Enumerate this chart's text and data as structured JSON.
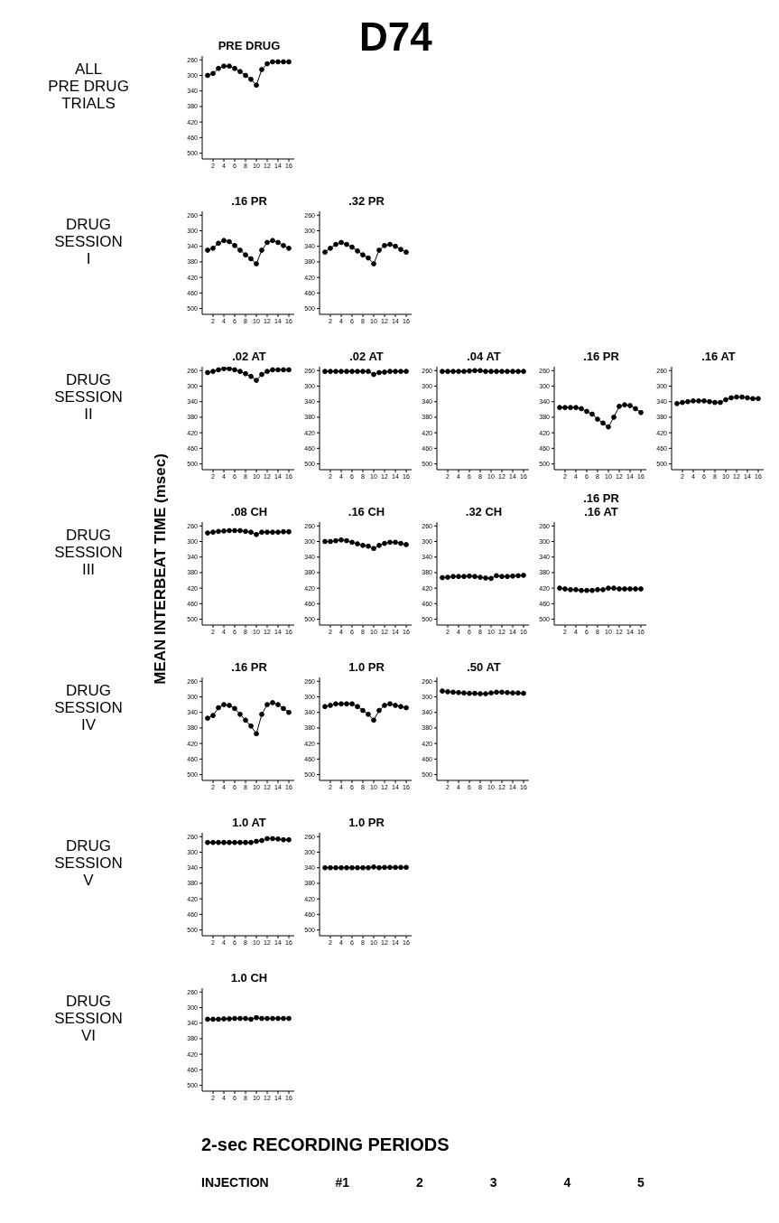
{
  "chart_data": [
    {
      "type": "line",
      "title": "PRE DRUG",
      "x": [
        1,
        2,
        3,
        4,
        5,
        6,
        7,
        8,
        9,
        10,
        11,
        12,
        13,
        14,
        15,
        16
      ],
      "values": [
        300,
        295,
        282,
        276,
        276,
        282,
        290,
        300,
        310,
        325,
        285,
        270,
        265,
        265,
        265,
        265
      ],
      "color": "#000000",
      "marker": "circle",
      "ylim": [
        515,
        250
      ],
      "yticks": [
        260,
        300,
        340,
        380,
        420,
        460,
        500
      ],
      "xlim": [
        0,
        17
      ],
      "xticks": [
        2,
        4,
        6,
        8,
        10,
        12,
        14,
        16
      ]
    },
    {
      "type": "line",
      "title": ".16 PR",
      "x": [
        1,
        2,
        3,
        4,
        5,
        6,
        7,
        8,
        9,
        10,
        11,
        12,
        13,
        14,
        15,
        16
      ],
      "values": [
        350,
        345,
        332,
        325,
        328,
        338,
        350,
        362,
        372,
        385,
        350,
        330,
        325,
        330,
        338,
        345
      ],
      "color": "#000000",
      "marker": "circle",
      "ylim": [
        515,
        250
      ],
      "yticks": [
        260,
        300,
        340,
        380,
        420,
        460,
        500
      ],
      "xlim": [
        0,
        17
      ],
      "xticks": [
        2,
        4,
        6,
        8,
        10,
        12,
        14,
        16
      ]
    },
    {
      "type": "line",
      "title": ".32 PR",
      "x": [
        1,
        2,
        3,
        4,
        5,
        6,
        7,
        8,
        9,
        10,
        11,
        12,
        13,
        14,
        15,
        16
      ],
      "values": [
        355,
        345,
        335,
        330,
        335,
        342,
        352,
        362,
        370,
        385,
        350,
        338,
        335,
        340,
        348,
        355
      ],
      "color": "#000000",
      "marker": "circle",
      "ylim": [
        515,
        250
      ],
      "yticks": [
        260,
        300,
        340,
        380,
        420,
        460,
        500
      ],
      "xlim": [
        0,
        17
      ],
      "xticks": [
        2,
        4,
        6,
        8,
        10,
        12,
        14,
        16
      ]
    },
    {
      "type": "line",
      "title": ".02 AT",
      "x": [
        1,
        2,
        3,
        4,
        5,
        6,
        7,
        8,
        9,
        10,
        11,
        12,
        13,
        14,
        15,
        16
      ],
      "values": [
        265,
        262,
        258,
        255,
        255,
        258,
        262,
        268,
        275,
        285,
        270,
        262,
        258,
        258,
        258,
        258
      ],
      "color": "#000000",
      "marker": "circle",
      "ylim": [
        515,
        250
      ],
      "yticks": [
        260,
        300,
        340,
        380,
        420,
        460,
        500
      ],
      "xlim": [
        0,
        17
      ],
      "xticks": [
        2,
        4,
        6,
        8,
        10,
        12,
        14,
        16
      ]
    },
    {
      "type": "line",
      "title": ".02 AT",
      "x": [
        1,
        2,
        3,
        4,
        5,
        6,
        7,
        8,
        9,
        10,
        11,
        12,
        13,
        14,
        15,
        16
      ],
      "values": [
        262,
        262,
        262,
        262,
        262,
        262,
        262,
        262,
        262,
        270,
        265,
        264,
        262,
        262,
        262,
        262
      ],
      "color": "#000000",
      "marker": "circle",
      "ylim": [
        515,
        250
      ],
      "yticks": [
        260,
        300,
        340,
        380,
        420,
        460,
        500
      ],
      "xlim": [
        0,
        17
      ],
      "xticks": [
        2,
        4,
        6,
        8,
        10,
        12,
        14,
        16
      ]
    },
    {
      "type": "line",
      "title": ".04 AT",
      "x": [
        1,
        2,
        3,
        4,
        5,
        6,
        7,
        8,
        9,
        10,
        11,
        12,
        13,
        14,
        15,
        16
      ],
      "values": [
        262,
        262,
        262,
        262,
        262,
        261,
        260,
        260,
        262,
        262,
        262,
        262,
        262,
        262,
        262,
        262
      ],
      "color": "#000000",
      "marker": "circle",
      "ylim": [
        515,
        250
      ],
      "yticks": [
        260,
        300,
        340,
        380,
        420,
        460,
        500
      ],
      "xlim": [
        0,
        17
      ],
      "xticks": [
        2,
        4,
        6,
        8,
        10,
        12,
        14,
        16
      ]
    },
    {
      "type": "line",
      "title": ".16 PR",
      "x": [
        1,
        2,
        3,
        4,
        5,
        6,
        7,
        8,
        9,
        10,
        11,
        12,
        13,
        14,
        15,
        16
      ],
      "values": [
        355,
        355,
        355,
        355,
        358,
        365,
        372,
        385,
        395,
        405,
        380,
        352,
        348,
        350,
        358,
        368
      ],
      "color": "#000000",
      "marker": "circle",
      "ylim": [
        515,
        250
      ],
      "yticks": [
        260,
        300,
        340,
        380,
        420,
        460,
        500
      ],
      "xlim": [
        0,
        17
      ],
      "xticks": [
        2,
        4,
        6,
        8,
        10,
        12,
        14,
        16
      ]
    },
    {
      "type": "line",
      "title": ".16 AT",
      "x": [
        1,
        2,
        3,
        4,
        5,
        6,
        7,
        8,
        9,
        10,
        11,
        12,
        13,
        14,
        15,
        16
      ],
      "values": [
        345,
        342,
        340,
        338,
        338,
        338,
        340,
        342,
        342,
        335,
        330,
        328,
        328,
        330,
        332,
        332
      ],
      "color": "#000000",
      "marker": "circle",
      "ylim": [
        515,
        250
      ],
      "yticks": [
        260,
        300,
        340,
        380,
        420,
        460,
        500
      ],
      "xlim": [
        0,
        17
      ],
      "xticks": [
        2,
        4,
        6,
        8,
        10,
        12,
        14,
        16
      ]
    },
    {
      "type": "line",
      "title": ".08 CH",
      "x": [
        1,
        2,
        3,
        4,
        5,
        6,
        7,
        8,
        9,
        10,
        11,
        12,
        13,
        14,
        15,
        16
      ],
      "values": [
        278,
        276,
        274,
        273,
        272,
        272,
        272,
        274,
        276,
        282,
        276,
        276,
        276,
        276,
        275,
        275
      ],
      "color": "#000000",
      "marker": "circle",
      "ylim": [
        515,
        250
      ],
      "yticks": [
        260,
        300,
        340,
        380,
        420,
        460,
        500
      ],
      "xlim": [
        0,
        17
      ],
      "xticks": [
        2,
        4,
        6,
        8,
        10,
        12,
        14,
        16
      ]
    },
    {
      "type": "line",
      "title": ".16 CH",
      "x": [
        1,
        2,
        3,
        4,
        5,
        6,
        7,
        8,
        9,
        10,
        11,
        12,
        13,
        14,
        15,
        16
      ],
      "values": [
        300,
        300,
        298,
        296,
        298,
        302,
        306,
        310,
        312,
        318,
        310,
        305,
        302,
        302,
        305,
        308
      ],
      "color": "#000000",
      "marker": "circle",
      "ylim": [
        515,
        250
      ],
      "yticks": [
        260,
        300,
        340,
        380,
        420,
        460,
        500
      ],
      "xlim": [
        0,
        17
      ],
      "xticks": [
        2,
        4,
        6,
        8,
        10,
        12,
        14,
        16
      ]
    },
    {
      "type": "line",
      "title": ".32 CH",
      "x": [
        1,
        2,
        3,
        4,
        5,
        6,
        7,
        8,
        9,
        10,
        11,
        12,
        13,
        14,
        15,
        16
      ],
      "values": [
        393,
        392,
        390,
        390,
        390,
        389,
        390,
        392,
        394,
        395,
        388,
        390,
        390,
        389,
        388,
        387
      ],
      "color": "#000000",
      "marker": "circle",
      "ylim": [
        515,
        250
      ],
      "yticks": [
        260,
        300,
        340,
        380,
        420,
        460,
        500
      ],
      "xlim": [
        0,
        17
      ],
      "xticks": [
        2,
        4,
        6,
        8,
        10,
        12,
        14,
        16
      ]
    },
    {
      "type": "line",
      "title": ".16 PR\n.16 AT",
      "x": [
        1,
        2,
        3,
        4,
        5,
        6,
        7,
        8,
        9,
        10,
        11,
        12,
        13,
        14,
        15,
        16
      ],
      "values": [
        420,
        422,
        424,
        424,
        426,
        426,
        426,
        424,
        424,
        420,
        420,
        422,
        422,
        422,
        422,
        422
      ],
      "color": "#000000",
      "marker": "circle",
      "ylim": [
        515,
        250
      ],
      "yticks": [
        260,
        300,
        340,
        380,
        420,
        460,
        500
      ],
      "xlim": [
        0,
        17
      ],
      "xticks": [
        2,
        4,
        6,
        8,
        10,
        12,
        14,
        16
      ]
    },
    {
      "type": "line",
      "title": ".16 PR",
      "x": [
        1,
        2,
        3,
        4,
        5,
        6,
        7,
        8,
        9,
        10,
        11,
        12,
        13,
        14,
        15,
        16
      ],
      "values": [
        355,
        348,
        328,
        320,
        322,
        330,
        345,
        360,
        375,
        395,
        345,
        320,
        315,
        320,
        330,
        340
      ],
      "color": "#000000",
      "marker": "circle",
      "ylim": [
        515,
        250
      ],
      "yticks": [
        260,
        300,
        340,
        380,
        420,
        460,
        500
      ],
      "xlim": [
        0,
        17
      ],
      "xticks": [
        2,
        4,
        6,
        8,
        10,
        12,
        14,
        16
      ]
    },
    {
      "type": "line",
      "title": "1.0 PR",
      "x": [
        1,
        2,
        3,
        4,
        5,
        6,
        7,
        8,
        9,
        10,
        11,
        12,
        13,
        14,
        15,
        16
      ],
      "values": [
        325,
        322,
        318,
        318,
        318,
        318,
        325,
        335,
        345,
        360,
        335,
        322,
        318,
        322,
        325,
        328
      ],
      "color": "#000000",
      "marker": "circle",
      "ylim": [
        515,
        250
      ],
      "yticks": [
        260,
        300,
        340,
        380,
        420,
        460,
        500
      ],
      "xlim": [
        0,
        17
      ],
      "xticks": [
        2,
        4,
        6,
        8,
        10,
        12,
        14,
        16
      ]
    },
    {
      "type": "line",
      "title": ".50 AT",
      "x": [
        1,
        2,
        3,
        4,
        5,
        6,
        7,
        8,
        9,
        10,
        11,
        12,
        13,
        14,
        15,
        16
      ],
      "values": [
        285,
        287,
        288,
        289,
        290,
        291,
        291,
        292,
        292,
        290,
        288,
        288,
        289,
        290,
        290,
        291
      ],
      "color": "#000000",
      "marker": "circle",
      "ylim": [
        515,
        250
      ],
      "yticks": [
        260,
        300,
        340,
        380,
        420,
        460,
        500
      ],
      "xlim": [
        0,
        17
      ],
      "xticks": [
        2,
        4,
        6,
        8,
        10,
        12,
        14,
        16
      ]
    },
    {
      "type": "line",
      "title": "1.0 AT",
      "x": [
        1,
        2,
        3,
        4,
        5,
        6,
        7,
        8,
        9,
        10,
        11,
        12,
        13,
        14,
        15,
        16
      ],
      "values": [
        275,
        275,
        275,
        275,
        275,
        275,
        275,
        275,
        275,
        272,
        270,
        265,
        265,
        266,
        268,
        268
      ],
      "color": "#000000",
      "marker": "circle",
      "ylim": [
        515,
        250
      ],
      "yticks": [
        260,
        300,
        340,
        380,
        420,
        460,
        500
      ],
      "xlim": [
        0,
        17
      ],
      "xticks": [
        2,
        4,
        6,
        8,
        10,
        12,
        14,
        16
      ]
    },
    {
      "type": "line",
      "title": "1.0 PR",
      "x": [
        1,
        2,
        3,
        4,
        5,
        6,
        7,
        8,
        9,
        10,
        11,
        12,
        13,
        14,
        15,
        16
      ],
      "values": [
        340,
        340,
        340,
        340,
        340,
        340,
        340,
        340,
        340,
        338,
        340,
        339,
        339,
        339,
        339,
        339
      ],
      "color": "#000000",
      "marker": "circle",
      "ylim": [
        515,
        250
      ],
      "yticks": [
        260,
        300,
        340,
        380,
        420,
        460,
        500
      ],
      "xlim": [
        0,
        17
      ],
      "xticks": [
        2,
        4,
        6,
        8,
        10,
        12,
        14,
        16
      ]
    },
    {
      "type": "line",
      "title": "1.0 CH",
      "x": [
        1,
        2,
        3,
        4,
        5,
        6,
        7,
        8,
        9,
        10,
        11,
        12,
        13,
        14,
        15,
        16
      ],
      "values": [
        330,
        330,
        330,
        329,
        329,
        328,
        328,
        328,
        330,
        326,
        328,
        328,
        328,
        328,
        328,
        328
      ],
      "color": "#000000",
      "marker": "circle",
      "ylim": [
        515,
        250
      ],
      "yticks": [
        260,
        300,
        340,
        380,
        420,
        460,
        500
      ],
      "xlim": [
        0,
        17
      ],
      "xticks": [
        2,
        4,
        6,
        8,
        10,
        12,
        14,
        16
      ]
    },
    {
      "type": "other",
      "title": "D74",
      "ylabel": "MEAN INTERBEAT TIME (msec)",
      "xlabel": "2-sec RECORDING PERIODS",
      "annotations": [
        "ALL\nPRE DRUG\nTRIALS",
        "DRUG\nSESSION\nI",
        "DRUG\nSESSION\nII",
        "DRUG\nSESSION\nIII",
        "DRUG\nSESSION\nIV",
        "DRUG\nSESSION\nV",
        "DRUG\nSESSION\nVI",
        "INJECTION #1 2 3 4 5"
      ]
    }
  ]
}
